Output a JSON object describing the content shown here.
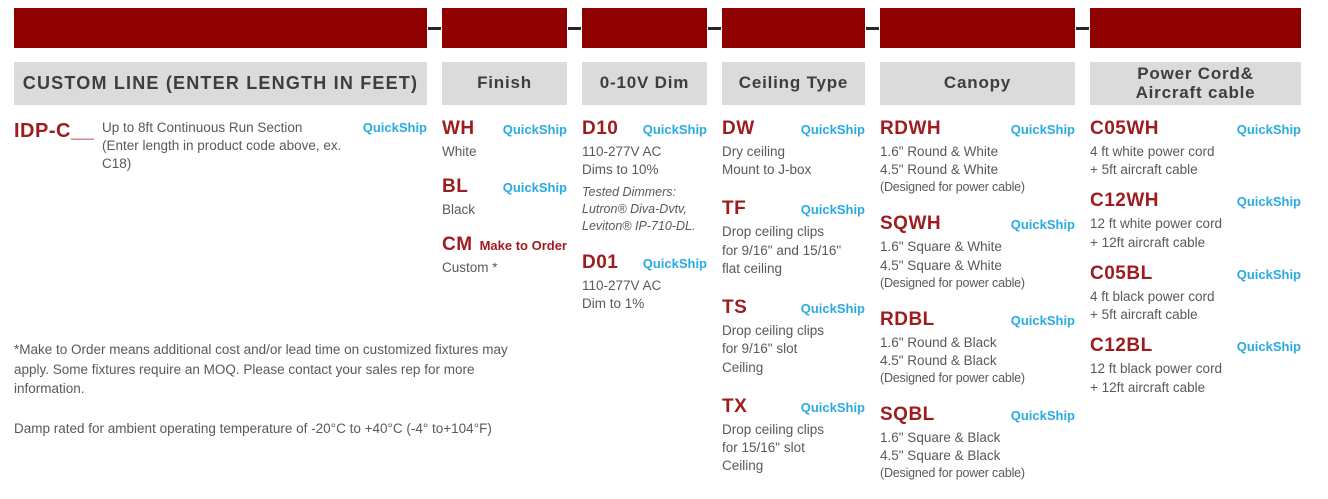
{
  "colors": {
    "bar_red": "#8f0100",
    "code_red": "#9e1b1e",
    "quickship_cyan": "#29abe2",
    "header_bg": "#dbdbdb",
    "header_text": "#3e3e40",
    "body_text": "#58595b"
  },
  "columns": [
    {
      "id": "custom-line",
      "header": "CUSTOM LINE (ENTER LENGTH IN FEET)",
      "items": [
        {
          "code": "IDP-C__",
          "badge": "QuickShip",
          "lines": [
            "Up to 8ft Continuous Run Section",
            "(Enter length in product code above, ex. C18)"
          ]
        }
      ]
    },
    {
      "id": "finish",
      "header": "Finish",
      "items": [
        {
          "code": "WH",
          "badge": "QuickShip",
          "lines": [
            "White"
          ]
        },
        {
          "code": "BL",
          "badge": "QuickShip",
          "lines": [
            "Black"
          ]
        },
        {
          "code": "CM",
          "badge": "Make to Order",
          "lines": [
            "Custom *"
          ]
        }
      ]
    },
    {
      "id": "dim-0-10v",
      "header": "0-10V Dim",
      "items": [
        {
          "code": "D10",
          "badge": "QuickShip",
          "lines": [
            "110-277V AC",
            "Dims to 10%"
          ],
          "italic_lines": [
            "Tested Dimmers:",
            "Lutron® Diva-Dvtv,",
            "Leviton® IP-710-DL."
          ]
        },
        {
          "code": "D01",
          "badge": "QuickShip",
          "lines": [
            "110-277V AC",
            "Dim to 1%"
          ]
        }
      ]
    },
    {
      "id": "ceiling-type",
      "header": "Ceiling Type",
      "items": [
        {
          "code": "DW",
          "badge": "QuickShip",
          "lines": [
            "Dry ceiling",
            "Mount to J-box"
          ]
        },
        {
          "code": "TF",
          "badge": "QuickShip",
          "lines": [
            "Drop ceiling clips",
            "for 9/16\" and 15/16\"",
            "flat ceiling"
          ]
        },
        {
          "code": "TS",
          "badge": "QuickShip",
          "lines": [
            "Drop ceiling clips",
            "for 9/16\" slot",
            "Ceiling"
          ]
        },
        {
          "code": "TX",
          "badge": "QuickShip",
          "lines": [
            "Drop ceiling clips",
            "for 15/16\" slot",
            "Ceiling"
          ]
        }
      ]
    },
    {
      "id": "canopy",
      "header": "Canopy",
      "items": [
        {
          "code": "RDWH",
          "badge": "QuickShip",
          "lines": [
            "1.6\" Round & White",
            "4.5\" Round & White",
            "(Designed for power cable)"
          ]
        },
        {
          "code": "SQWH",
          "badge": "QuickShip",
          "lines": [
            "1.6\" Square & White",
            "4.5\" Square & White",
            "(Designed for power cable)"
          ]
        },
        {
          "code": "RDBL",
          "badge": "QuickShip",
          "lines": [
            "1.6\" Round & Black",
            "4.5\" Round & Black",
            "(Designed for power cable)"
          ]
        },
        {
          "code": "SQBL",
          "badge": "QuickShip",
          "lines": [
            "1.6\" Square & Black",
            "4.5\" Square & Black",
            "(Designed for power cable)"
          ]
        }
      ]
    },
    {
      "id": "power-cord",
      "header": "Power Cord&\nAircraft cable",
      "items": [
        {
          "code": "C05WH",
          "badge": "QuickShip",
          "lines": [
            "4 ft white power cord",
            "+ 5ft aircraft cable"
          ]
        },
        {
          "code": "C12WH",
          "badge": "QuickShip",
          "lines": [
            "12 ft white power cord",
            "+ 12ft aircraft cable"
          ]
        },
        {
          "code": "C05BL",
          "badge": "QuickShip",
          "lines": [
            "4 ft black power cord",
            "+ 5ft aircraft cable"
          ]
        },
        {
          "code": "C12BL",
          "badge": "QuickShip",
          "lines": [
            "12 ft black power cord",
            "+ 12ft aircraft cable"
          ]
        }
      ]
    }
  ],
  "notes": [
    "*Make to Order means additional cost and/or lead time on customized fixtures may apply. Some fixtures require an MOQ. Please contact your sales rep for more information.",
    "Damp rated for ambient operating temperature of -20°C to +40°C (-4° to+104°F)"
  ]
}
